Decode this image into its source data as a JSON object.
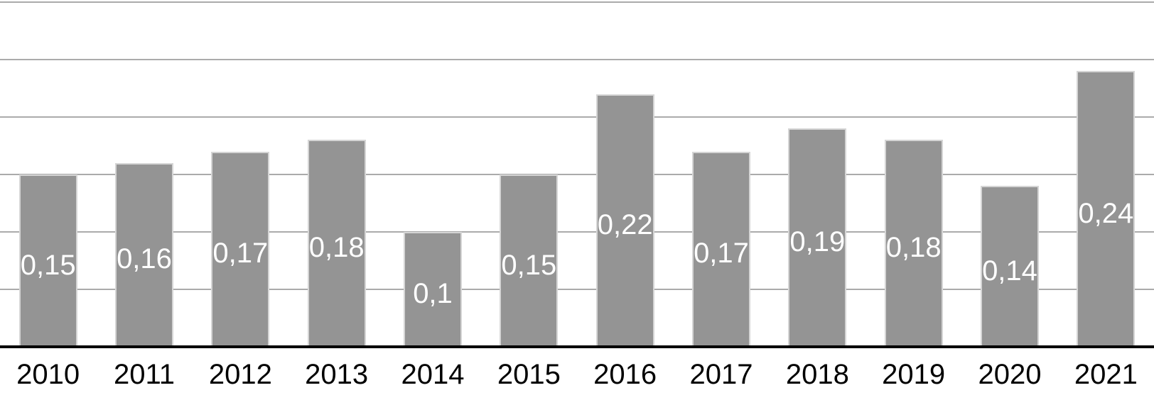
{
  "chart_data": {
    "type": "bar",
    "categories": [
      "2010",
      "2011",
      "2012",
      "2013",
      "2014",
      "2015",
      "2016",
      "2017",
      "2018",
      "2019",
      "2020",
      "2021"
    ],
    "values": [
      0.15,
      0.16,
      0.17,
      0.18,
      0.1,
      0.15,
      0.22,
      0.17,
      0.19,
      0.18,
      0.14,
      0.24
    ],
    "value_labels": [
      "0,15",
      "0,16",
      "0,17",
      "0,18",
      "0,1",
      "0,15",
      "0,22",
      "0,17",
      "0,19",
      "0,18",
      "0,14",
      "0,24"
    ],
    "decimal_separator": ",",
    "ylim": [
      0,
      0.3
    ],
    "gridline_step": 0.05,
    "grid": "horizontal",
    "legend": "none",
    "y_tick_labels_visible": false,
    "colors": {
      "bar_fill": "#949494",
      "bar_border": "#d5d5d5",
      "data_label": "#ffffff",
      "gridline": "#ababab",
      "axis_line": "#000000",
      "tick_label": "#000000",
      "background": "#ffffff"
    }
  }
}
